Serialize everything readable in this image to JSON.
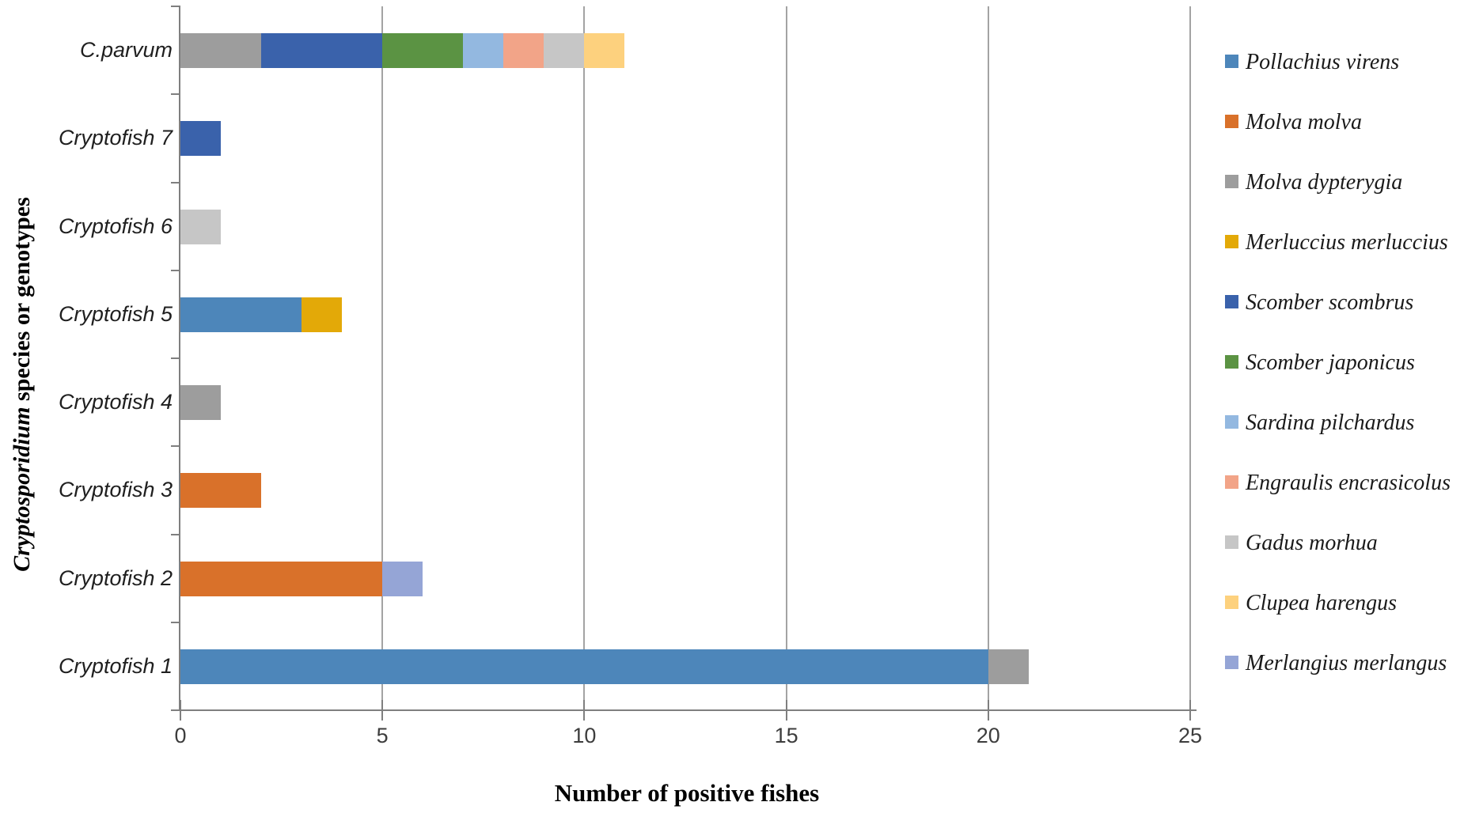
{
  "chart_data": {
    "type": "bar",
    "orientation": "horizontal",
    "stacked": true,
    "title": "",
    "xlabel": "Number of positive fishes",
    "ylabel": "Cryptosporidium species or genotypes",
    "ylabel_italic_prefix": "Cryptosporidium",
    "ylabel_suffix": " species or genotypes",
    "xlim": [
      0,
      25
    ],
    "xticks": [
      0,
      5,
      10,
      15,
      20,
      25
    ],
    "grid": "vertical gridlines at x ticks",
    "legend_position": "right",
    "categories_top_to_bottom": [
      "C.parvum",
      "Cryptofish 7",
      "Cryptofish 6",
      "Cryptofish 5",
      "Cryptofish 4",
      "Cryptofish 3",
      "Cryptofish 2",
      "Cryptofish 1"
    ],
    "series": [
      {
        "name": "Pollachius virens",
        "color": "#4d86ba",
        "values": [
          0,
          0,
          0,
          3,
          0,
          0,
          0,
          20
        ]
      },
      {
        "name": "Molva molva",
        "color": "#d9712a",
        "values": [
          0,
          0,
          0,
          0,
          0,
          2,
          5,
          0
        ]
      },
      {
        "name": "Molva dypterygia",
        "color": "#9d9d9d",
        "values": [
          2,
          0,
          0,
          0,
          1,
          0,
          0,
          1
        ]
      },
      {
        "name": "Merluccius merluccius",
        "color": "#e3a908",
        "values": [
          0,
          0,
          0,
          1,
          0,
          0,
          0,
          0
        ]
      },
      {
        "name": "Scomber scombrus",
        "color": "#3a62ab",
        "values": [
          3,
          1,
          0,
          0,
          0,
          0,
          0,
          0
        ]
      },
      {
        "name": "Scomber japonicus",
        "color": "#5b9343",
        "values": [
          2,
          0,
          0,
          0,
          0,
          0,
          0,
          0
        ]
      },
      {
        "name": "Sardina pilchardus",
        "color": "#93b8e0",
        "values": [
          1,
          0,
          0,
          0,
          0,
          0,
          0,
          0
        ]
      },
      {
        "name": "Engraulis encrasicolus",
        "color": "#f2a488",
        "values": [
          1,
          0,
          0,
          0,
          0,
          0,
          0,
          0
        ]
      },
      {
        "name": "Gadus morhua",
        "color": "#c6c6c6",
        "values": [
          1,
          0,
          1,
          0,
          0,
          0,
          0,
          0
        ]
      },
      {
        "name": "Clupea harengus",
        "color": "#fdd17e",
        "values": [
          1,
          0,
          0,
          0,
          0,
          0,
          0,
          0
        ]
      },
      {
        "name": "Merlangius merlangus",
        "color": "#95a5d6",
        "values": [
          0,
          0,
          0,
          0,
          0,
          0,
          1,
          0
        ]
      }
    ],
    "totals_per_category": {
      "C.parvum": 11,
      "Cryptofish 7": 1,
      "Cryptofish 6": 1,
      "Cryptofish 5": 4,
      "Cryptofish 4": 1,
      "Cryptofish 3": 2,
      "Cryptofish 2": 6,
      "Cryptofish 1": 21
    }
  }
}
